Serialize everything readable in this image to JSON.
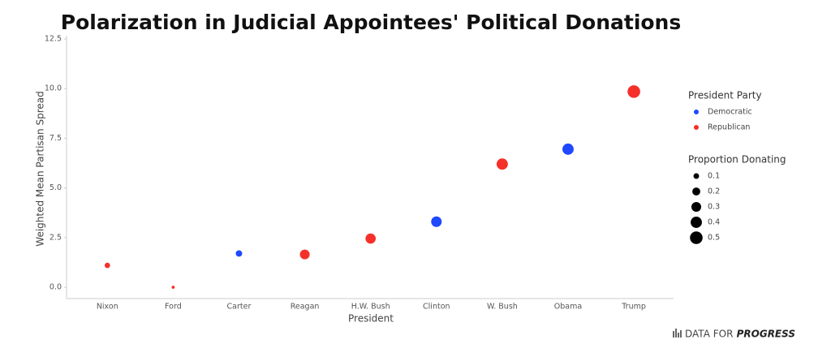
{
  "chart_data": {
    "type": "scatter",
    "title": "Polarization in Judicial Appointees' Political Donations",
    "x_label": "President",
    "y_label": "Weighted Mean Partisan Spread",
    "categories": [
      "Nixon",
      "Ford",
      "Carter",
      "Reagan",
      "H.W. Bush",
      "Clinton",
      "W. Bush",
      "Obama",
      "Trump"
    ],
    "legend_title": "President Party",
    "series": [
      {
        "name": "Democratic",
        "color": "#1f48ff",
        "values": [
          null,
          null,
          1.7,
          null,
          null,
          3.3,
          null,
          6.95,
          null
        ],
        "sizes": [
          null,
          null,
          0.13,
          null,
          null,
          0.35,
          null,
          0.4,
          null
        ]
      },
      {
        "name": "Republican",
        "color": "#f5302a",
        "values": [
          1.1,
          0.0,
          null,
          1.65,
          2.45,
          null,
          6.2,
          null,
          9.85
        ],
        "sizes": [
          0.09,
          0.03,
          null,
          0.3,
          0.33,
          null,
          0.4,
          null,
          0.5
        ]
      }
    ],
    "size_legend": {
      "title": "Proportion Donating",
      "values": [
        0.1,
        0.2,
        0.3,
        0.4,
        0.5
      ]
    },
    "ylim": [
      -0.57,
      12.5
    ],
    "yticks": [
      {
        "value": 0,
        "label": "0.0"
      },
      {
        "value": 2.5,
        "label": "2.5"
      },
      {
        "value": 5,
        "label": "5.0"
      },
      {
        "value": 7.5,
        "label": "7.5"
      },
      {
        "value": 10,
        "label": "10.0"
      },
      {
        "value": 12.5,
        "label": "12.5"
      }
    ],
    "grid": false,
    "source_prefix": "DATA FOR",
    "source_emphasis": "PROGRESS"
  }
}
